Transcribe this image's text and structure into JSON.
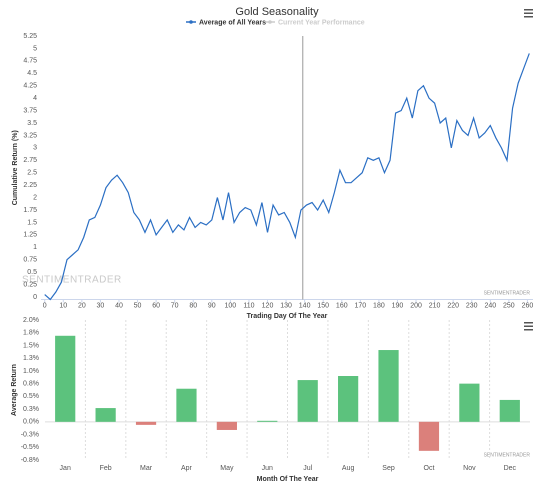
{
  "chart_data": [
    {
      "type": "line",
      "title": "Gold Seasonality",
      "x_label": "Trading Day Of The Year",
      "y_label": "Cumulative Return (%)",
      "x": [
        0,
        3,
        6,
        9,
        12,
        15,
        18,
        21,
        24,
        27,
        30,
        33,
        36,
        39,
        42,
        45,
        48,
        51,
        54,
        57,
        60,
        63,
        66,
        69,
        72,
        75,
        78,
        81,
        84,
        87,
        90,
        93,
        96,
        99,
        102,
        105,
        108,
        111,
        114,
        117,
        120,
        123,
        126,
        129,
        132,
        135,
        138,
        141,
        144,
        147,
        150,
        153,
        156,
        159,
        162,
        165,
        168,
        171,
        174,
        177,
        180,
        183,
        186,
        189,
        192,
        195,
        198,
        201,
        204,
        207,
        210,
        213,
        216,
        219,
        222,
        225,
        228,
        231,
        234,
        237,
        240,
        243,
        246,
        249,
        252,
        255,
        258,
        261
      ],
      "series": [
        {
          "name": "Average of All Years",
          "color": "#2b6fc4",
          "values": [
            0.05,
            -0.05,
            0.1,
            0.3,
            0.75,
            0.85,
            0.95,
            1.2,
            1.55,
            1.6,
            1.85,
            2.2,
            2.35,
            2.45,
            2.3,
            2.1,
            1.7,
            1.55,
            1.3,
            1.55,
            1.25,
            1.4,
            1.55,
            1.3,
            1.45,
            1.35,
            1.6,
            1.4,
            1.5,
            1.45,
            1.55,
            2.0,
            1.55,
            2.1,
            1.5,
            1.7,
            1.8,
            1.75,
            1.45,
            1.9,
            1.3,
            1.85,
            1.65,
            1.7,
            1.5,
            1.2,
            1.75,
            1.85,
            1.9,
            1.75,
            1.95,
            1.7,
            2.1,
            2.55,
            2.3,
            2.3,
            2.4,
            2.5,
            2.8,
            2.75,
            2.8,
            2.5,
            2.75,
            3.7,
            3.75,
            4.0,
            3.6,
            4.15,
            4.25,
            4.0,
            3.9,
            3.5,
            3.6,
            3.0,
            3.55,
            3.35,
            3.25,
            3.6,
            3.2,
            3.3,
            3.45,
            3.2,
            3.0,
            2.75,
            3.8,
            4.3,
            4.6,
            4.9
          ]
        }
      ],
      "inactive_legend": {
        "name": "Current Year Performance",
        "color": "#cccccc"
      },
      "current_day_line": 139,
      "xlim": [
        -2,
        263
      ],
      "xticks": [
        0,
        10,
        20,
        30,
        40,
        50,
        60,
        70,
        80,
        90,
        100,
        110,
        120,
        130,
        140,
        150,
        160,
        170,
        180,
        190,
        200,
        210,
        220,
        230,
        240,
        250,
        260
      ],
      "ylim": [
        -0.05,
        5.25
      ],
      "yticks": [
        0,
        0.25,
        0.5,
        0.75,
        1,
        1.25,
        1.5,
        1.75,
        2,
        2.25,
        2.5,
        2.75,
        3,
        3.25,
        3.5,
        3.75,
        4,
        4.25,
        4.5,
        4.75,
        5,
        5.25
      ],
      "grid": false,
      "logo": "SENTIMENTRADER",
      "watermark": "SENTIMENTRADER"
    },
    {
      "type": "bar",
      "x_label": "Month Of The Year",
      "y_label": "Average Return",
      "categories": [
        "Jan",
        "Feb",
        "Mar",
        "Apr",
        "May",
        "Jun",
        "Jul",
        "Aug",
        "Sep",
        "Oct",
        "Nov",
        "Dec"
      ],
      "values": [
        1.69,
        0.27,
        -0.06,
        0.65,
        -0.16,
        0.02,
        0.82,
        0.9,
        1.41,
        -0.57,
        0.75,
        0.43
      ],
      "positive_color": "#5cc27d",
      "negative_color": "#db807b",
      "ylim": [
        -0.75,
        2.0
      ],
      "yticks": [
        {
          "value": -0.75,
          "label": "-0.8%"
        },
        {
          "value": -0.5,
          "label": "-0.5%"
        },
        {
          "value": -0.25,
          "label": "-0.3%"
        },
        {
          "value": 0,
          "label": "0.0%"
        },
        {
          "value": 0.25,
          "label": "0.3%"
        },
        {
          "value": 0.5,
          "label": "0.5%"
        },
        {
          "value": 0.75,
          "label": "0.8%"
        },
        {
          "value": 1.0,
          "label": "1.0%"
        },
        {
          "value": 1.25,
          "label": "1.3%"
        },
        {
          "value": 1.5,
          "label": "1.5%"
        },
        {
          "value": 1.75,
          "label": "1.8%"
        },
        {
          "value": 2.0,
          "label": "2.0%"
        }
      ],
      "grid": true,
      "watermark": "SENTIMENTRADER"
    }
  ]
}
